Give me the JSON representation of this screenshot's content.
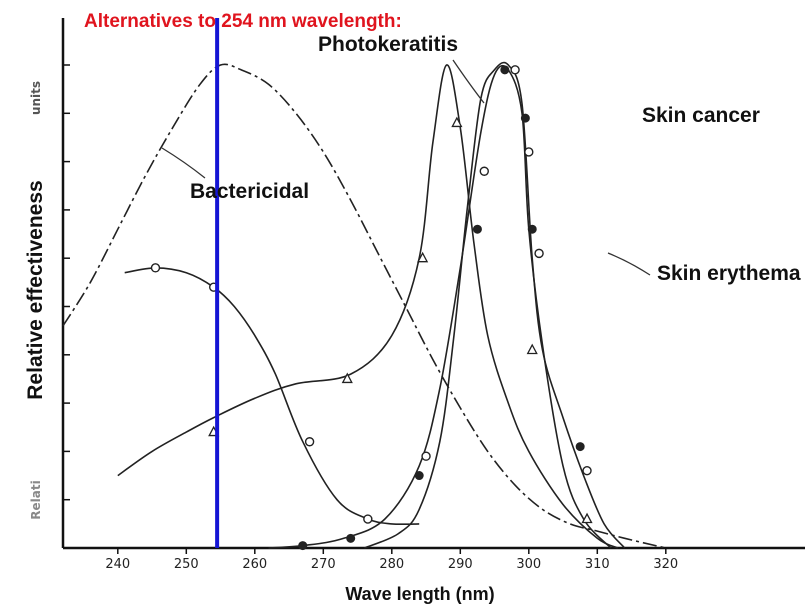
{
  "header": {
    "title": "Alternatives to 254 nm wavelength:",
    "title_color": "#e0141e"
  },
  "chart_data": {
    "type": "line",
    "title": "Alternatives to 254 nm wavelength:",
    "xlabel": "Wave length (nm)",
    "ylabel": "Relative effectiveness",
    "ylabel_faded": "Relati",
    "ylabel_units": "units",
    "xlim": [
      232,
      322
    ],
    "ylim": [
      0,
      1.0
    ],
    "x_ticks": [
      240,
      250,
      260,
      270,
      280,
      290,
      300,
      310,
      320
    ],
    "y_tick_count": 10,
    "grid": false,
    "marker_line": {
      "x": 254.5,
      "color": "#1515d4"
    },
    "series": [
      {
        "name": "Bactericidal",
        "style": "dash-dot",
        "marker": "none",
        "x": [
          232,
          236,
          240,
          244,
          248,
          252,
          255,
          258,
          262,
          266,
          270,
          274,
          278,
          282,
          286,
          290,
          294,
          298,
          302,
          306,
          310,
          314,
          320
        ],
        "y": [
          0.46,
          0.55,
          0.66,
          0.77,
          0.87,
          0.96,
          1.0,
          0.99,
          0.96,
          0.9,
          0.82,
          0.72,
          0.61,
          0.5,
          0.39,
          0.29,
          0.2,
          0.13,
          0.08,
          0.05,
          0.035,
          0.02,
          0.0
        ]
      },
      {
        "name": "",
        "style": "solid",
        "marker": "open-circle",
        "x": [
          241,
          245.5,
          250,
          254,
          257,
          260,
          263,
          267,
          272,
          276.5,
          280,
          284
        ],
        "y": [
          0.57,
          0.58,
          0.57,
          0.54,
          0.5,
          0.44,
          0.36,
          0.22,
          0.1,
          0.06,
          0.05,
          0.05
        ],
        "markers_x": [
          245.5,
          254,
          268,
          276.5
        ],
        "markers_y": [
          0.58,
          0.54,
          0.22,
          0.06
        ]
      },
      {
        "name": "Photokeratitis",
        "style": "solid",
        "marker": "open-triangle",
        "x": [
          240,
          245,
          250,
          254,
          260,
          266,
          274,
          280,
          284,
          286,
          288,
          290,
          292,
          294,
          297,
          300,
          305,
          310,
          313
        ],
        "y": [
          0.15,
          0.2,
          0.24,
          0.27,
          0.31,
          0.34,
          0.36,
          0.44,
          0.6,
          0.84,
          1.0,
          0.87,
          0.63,
          0.44,
          0.3,
          0.2,
          0.09,
          0.02,
          0.0
        ],
        "markers_x": [
          254,
          273.5,
          284.5,
          289.5,
          300.5,
          308.5
        ],
        "markers_y": [
          0.24,
          0.35,
          0.6,
          0.88,
          0.41,
          0.06
        ]
      },
      {
        "name": "Skin cancer",
        "style": "solid",
        "marker": "filled-circle",
        "x": [
          262,
          267,
          273,
          279,
          284,
          287,
          290,
          293,
          295,
          297,
          299,
          300,
          302,
          305,
          308,
          312
        ],
        "y": [
          0.0,
          0.005,
          0.02,
          0.06,
          0.17,
          0.33,
          0.58,
          0.86,
          0.98,
          0.99,
          0.9,
          0.66,
          0.42,
          0.17,
          0.06,
          0.0
        ],
        "markers_x": [
          267,
          274,
          284,
          292.5,
          296.5,
          299.5,
          300.5,
          307.5
        ],
        "markers_y": [
          0.005,
          0.02,
          0.15,
          0.66,
          0.99,
          0.89,
          0.66,
          0.21
        ]
      },
      {
        "name": "Skin erythema",
        "style": "solid",
        "marker": "open-circle",
        "x": [
          276,
          281,
          284,
          287,
          289,
          291,
          293,
          295,
          297,
          299,
          300.5,
          302,
          305,
          308,
          311,
          314
        ],
        "y": [
          0.0,
          0.03,
          0.08,
          0.22,
          0.43,
          0.7,
          0.93,
          0.99,
          1.0,
          0.92,
          0.6,
          0.41,
          0.27,
          0.15,
          0.05,
          0.0
        ],
        "markers_x": [
          285,
          293.5,
          298,
          300,
          301.5,
          308.5
        ],
        "markers_y": [
          0.19,
          0.78,
          0.99,
          0.82,
          0.61,
          0.16
        ]
      }
    ],
    "annotations": [
      "Photokeratitis",
      "Skin cancer",
      "Bactericidal",
      "Skin erythema"
    ]
  }
}
